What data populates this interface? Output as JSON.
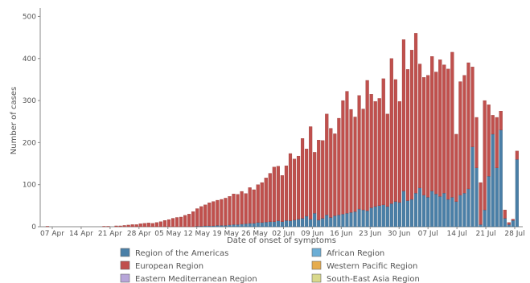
{
  "chart_data": {
    "type": "bar",
    "stacked": true,
    "xlabel": "Date of onset of symptoms",
    "ylabel": "Number of cases",
    "ylim": [
      0,
      520
    ],
    "yticks": [
      0,
      100,
      200,
      300,
      400,
      500
    ],
    "grid": false,
    "legend_position": "bottom",
    "x_tick_labels": [
      "07 Apr",
      "14 Apr",
      "21 Apr",
      "28 Apr",
      "05 May",
      "12 May",
      "19 May",
      "26 May",
      "02 Jun",
      "09 Jun",
      "16 Jun",
      "23 Jun",
      "30 Jun",
      "07 Jul",
      "14 Jul",
      "21 Jul",
      "28 Jul"
    ],
    "series": [
      {
        "name": "Region of the Americas",
        "color": "#4a7fa7",
        "values": [
          0,
          0,
          0,
          0,
          0,
          0,
          0,
          0,
          0,
          0,
          0,
          0,
          0,
          0,
          0,
          0,
          0,
          0,
          0,
          0,
          0,
          0,
          0,
          0,
          0,
          0,
          0,
          0,
          0,
          0,
          0,
          0,
          0,
          0,
          0,
          0,
          0,
          0,
          1,
          1,
          2,
          2,
          2,
          3,
          3,
          3,
          4,
          5,
          5,
          6,
          7,
          8,
          8,
          10,
          10,
          11,
          12,
          12,
          14,
          12,
          15,
          14,
          16,
          18,
          20,
          25,
          18,
          32,
          16,
          20,
          28,
          22,
          26,
          28,
          30,
          32,
          34,
          36,
          42,
          40,
          38,
          45,
          48,
          50,
          52,
          48,
          55,
          60,
          58,
          85,
          62,
          65,
          80,
          92,
          75,
          70,
          85,
          78,
          72,
          80,
          65,
          70,
          60,
          75,
          80,
          90,
          190,
          140,
          5,
          40,
          120,
          220,
          140,
          230,
          20,
          5,
          15,
          160
        ]
      },
      {
        "name": "European Region",
        "color": "#c0504d",
        "values": [
          0,
          1,
          0,
          0,
          0,
          0,
          0,
          0,
          0,
          0,
          0,
          0,
          0,
          0,
          0,
          1,
          1,
          0,
          2,
          2,
          3,
          4,
          5,
          5,
          7,
          8,
          9,
          8,
          10,
          12,
          15,
          17,
          20,
          22,
          23,
          27,
          30,
          36,
          42,
          47,
          50,
          55,
          58,
          60,
          62,
          65,
          68,
          73,
          72,
          78,
          72,
          85,
          80,
          90,
          95,
          105,
          115,
          130,
          130,
          110,
          130,
          160,
          145,
          150,
          190,
          160,
          220,
          145,
          190,
          185,
          240,
          212,
          195,
          230,
          270,
          290,
          245,
          225,
          270,
          240,
          310,
          270,
          250,
          255,
          300,
          220,
          345,
          290,
          240,
          360,
          312,
          355,
          380,
          295,
          280,
          290,
          320,
          290,
          325,
          305,
          310,
          345,
          160,
          270,
          280,
          300,
          190,
          120,
          100,
          260,
          170,
          45,
          120,
          45,
          20,
          5,
          3,
          20
        ]
      },
      {
        "name": "African Region",
        "color": "#6baed6",
        "values": []
      },
      {
        "name": "Western Pacific Region",
        "color": "#e6ac4e",
        "values": []
      },
      {
        "name": "Eastern Mediterranean Region",
        "color": "#b7a6d9",
        "values": []
      },
      {
        "name": "South-East Asia Region",
        "color": "#d9d98c",
        "values": []
      }
    ]
  }
}
